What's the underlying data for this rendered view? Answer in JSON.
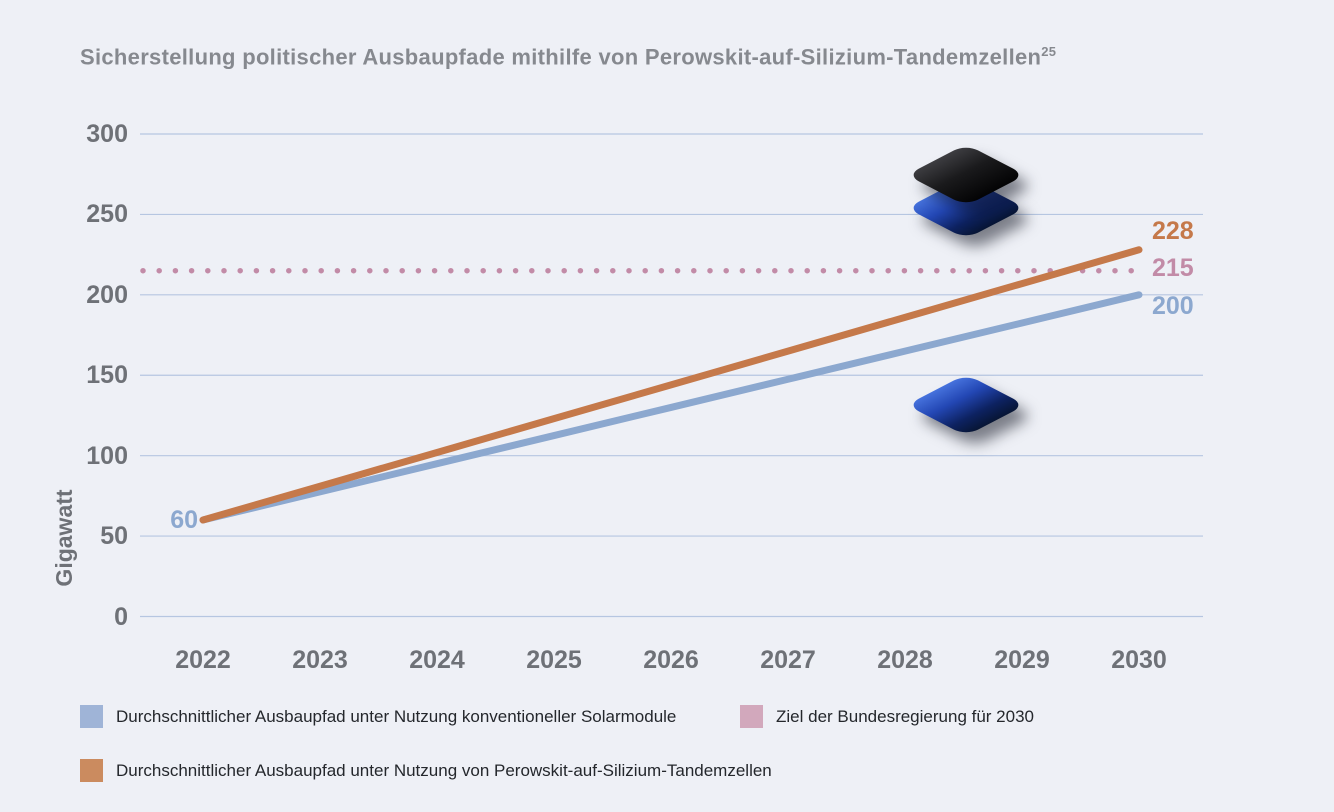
{
  "title": {
    "text": "Sicherstellung politischer Ausbaupfade mithilfe von Perowskit-auf-Silizium-Tandemzellen",
    "footnote_marker": "25"
  },
  "colors": {
    "background": "#eef0f6",
    "title_text": "#86898f",
    "axis_text": "#6e7177",
    "legend_text": "#24272c"
  },
  "chart_data": {
    "type": "line",
    "title": "Sicherstellung politischer Ausbaupfade mithilfe von Perowskit-auf-Silizium-Tandemzellen",
    "xlabel": "",
    "ylabel": "Gigawatt",
    "x": [
      2022,
      2023,
      2024,
      2025,
      2026,
      2027,
      2028,
      2029,
      2030
    ],
    "yticks": [
      0,
      50,
      100,
      150,
      200,
      250,
      300
    ],
    "ylim": [
      0,
      300
    ],
    "grid": true,
    "grid_color": "#b6c6e1",
    "legend_position": "bottom",
    "series": [
      {
        "name": "Durchschnittlicher Ausbaupfad unter Nutzung konventioneller Solarmodule",
        "style": "solid",
        "color": "#8ca8cf",
        "values": [
          60,
          77.5,
          95,
          112.5,
          130,
          147.5,
          165,
          182.5,
          200
        ],
        "start_label": "60",
        "end_label": "200"
      },
      {
        "name": "Ziel der Bundesregierung für 2030",
        "style": "dotted",
        "color": "#c28ba7",
        "values": [
          215,
          215,
          215,
          215,
          215,
          215,
          215,
          215,
          215
        ],
        "end_label": "215"
      },
      {
        "name": "Durchschnittlicher Ausbaupfad unter Nutzung von Perowskit-auf-Silizium-Tandemzellen",
        "style": "solid",
        "color": "#c5794a",
        "values": [
          60,
          81,
          102,
          123,
          144,
          165,
          186,
          207,
          228
        ],
        "end_label": "228"
      }
    ]
  },
  "legend": {
    "items": [
      {
        "label": "Durchschnittlicher Ausbaupfad unter Nutzung konventioneller Solarmodule",
        "color": "#9fb4d7"
      },
      {
        "label": "Ziel der Bundesregierung für 2030",
        "color": "#d2a8bc"
      },
      {
        "label": "Durchschnittlicher Ausbaupfad unter Nutzung von Perowskit-auf-Silizium-Tandemzellen",
        "color": "#cb8b5f"
      }
    ]
  },
  "icons": {
    "tandem_cell": "perovskite-on-silicon-tandem-cell-3d-icon",
    "single_module": "conventional-solar-module-3d-icon"
  }
}
